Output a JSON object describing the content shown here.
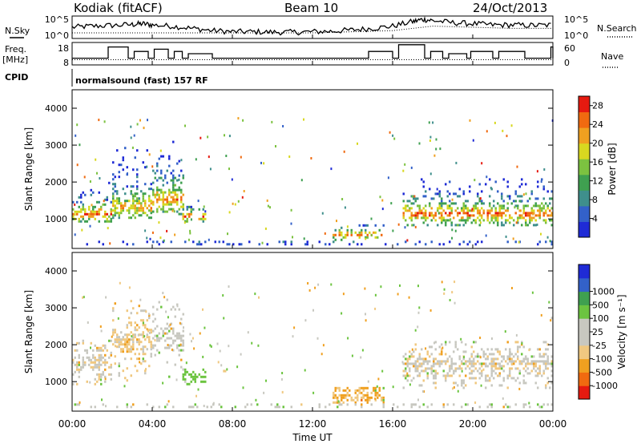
{
  "header": {
    "station": "Kodiak (fitACF)",
    "beam": "Beam 10",
    "date": "24/Oct/2013"
  },
  "panel_labels": {
    "nsky": "N.Sky",
    "nsearch": "N.Search",
    "freq": "Freq.",
    "freq_unit": "[MHz]",
    "nave": "Nave",
    "cpid": "CPID",
    "cpid_value": "normalsound (fast) 157 RF"
  },
  "colors": {
    "power_scale": [
      "#1f2bd6",
      "#3361c9",
      "#3f8f8c",
      "#3fa050",
      "#7cc240",
      "#d8d820",
      "#f0a020",
      "#f06a10",
      "#e61a10"
    ],
    "velocity_scale": [
      "#e61a10",
      "#f06a10",
      "#f0a020",
      "#f0c880",
      "#c8c8c0",
      "#c8c8c0",
      "#6cc440",
      "#3fa050",
      "#3361c9",
      "#1f2bd6"
    ],
    "grid": "#cccccc"
  },
  "chart_data": [
    {
      "type": "line",
      "name": "noise",
      "ylabel": "N.Sky",
      "yticks_left": [
        "10^5",
        "10^0"
      ],
      "yticks_right": [
        "10^5",
        "10^0"
      ],
      "xlim": [
        0,
        24
      ],
      "series": [
        {
          "name": "N.Sky",
          "style": "solid",
          "x": [
            0,
            1,
            2,
            3,
            3.5,
            4,
            5,
            6,
            7,
            8,
            9,
            10,
            11,
            12,
            13,
            14,
            15,
            16,
            17,
            17.5,
            18,
            19,
            20,
            21,
            22,
            23,
            24
          ],
          "y": [
            0.5,
            0.55,
            0.58,
            0.62,
            0.66,
            0.6,
            0.55,
            0.45,
            0.35,
            0.3,
            0.3,
            0.28,
            0.28,
            0.3,
            0.32,
            0.38,
            0.45,
            0.55,
            0.75,
            0.85,
            0.8,
            0.7,
            0.66,
            0.6,
            0.6,
            0.58,
            0.6
          ]
        },
        {
          "name": "N.Search",
          "style": "dotted",
          "x": [
            0,
            2,
            4,
            6,
            8,
            10,
            12,
            14,
            16,
            17,
            18,
            20,
            22,
            24
          ],
          "y": [
            0.25,
            0.25,
            0.25,
            0.25,
            0.25,
            0.25,
            0.25,
            0.3,
            0.35,
            0.45,
            0.55,
            0.5,
            0.45,
            0.45
          ]
        }
      ]
    },
    {
      "type": "line",
      "name": "frequency",
      "ylabel": "Freq. [MHz]",
      "ylabel_right": "Nave",
      "yticks_left": [
        "18",
        "8"
      ],
      "yticks_right": [
        "60",
        "0"
      ],
      "ylim": [
        8,
        18
      ],
      "ylim_right": [
        0,
        60
      ],
      "xlim": [
        0,
        24
      ],
      "series": [
        {
          "name": "Freq",
          "style": "step",
          "x": [
            0,
            1.5,
            1.8,
            2.8,
            3.1,
            3.8,
            4.1,
            4.8,
            5.1,
            5.5,
            5.8,
            7,
            8,
            9,
            10,
            11,
            12,
            13,
            14,
            14.5,
            14.8,
            16,
            16.3,
            17.6,
            17.9,
            18.5,
            18.8,
            19.7,
            19.9,
            21,
            21.3,
            22.6,
            22.9,
            23.6,
            23.9,
            24
          ],
          "y": [
            11,
            11,
            16,
            11,
            14,
            11,
            15,
            11,
            14,
            11,
            13,
            11,
            11,
            11,
            11,
            11,
            11,
            11,
            11,
            11,
            14,
            11,
            17,
            11,
            14,
            11,
            13,
            11,
            14,
            11,
            14,
            11,
            11,
            11,
            16,
            11
          ]
        },
        {
          "name": "Nave",
          "style": "dotted",
          "axis": "right",
          "x": [
            0,
            24
          ],
          "y": [
            14,
            14
          ]
        }
      ]
    },
    {
      "type": "heatmap",
      "name": "power",
      "ylabel": "Slant Range [km]",
      "yticks": [
        1000,
        2000,
        3000,
        4000
      ],
      "ylim": [
        200,
        4500
      ],
      "xlim": [
        0,
        24
      ],
      "colorbar_label": "Power [dB]",
      "colorbar_ticks": [
        4,
        8,
        12,
        16,
        20,
        24,
        28
      ],
      "colorbar_range": [
        0,
        30
      ],
      "regions": [
        {
          "t": [
            0.0,
            2.0
          ],
          "r": [
            900,
            2100
          ],
          "core": 1100,
          "spread": 250,
          "peak": 26
        },
        {
          "t": [
            2.0,
            4.0
          ],
          "r": [
            1000,
            3200
          ],
          "core": 1300,
          "spread": 400,
          "peak": 22
        },
        {
          "t": [
            4.0,
            5.5
          ],
          "r": [
            1100,
            3300
          ],
          "core": 1500,
          "spread": 450,
          "peak": 24
        },
        {
          "t": [
            5.5,
            6.6
          ],
          "r": [
            900,
            1300
          ],
          "core": 1050,
          "spread": 150,
          "peak": 28
        },
        {
          "t": [
            13.0,
            15.5
          ],
          "r": [
            400,
            800
          ],
          "core": 550,
          "spread": 120,
          "peak": 26
        },
        {
          "t": [
            16.5,
            24.0
          ],
          "r": [
            800,
            2100
          ],
          "core": 1100,
          "spread": 300,
          "peak": 26
        },
        {
          "t": [
            0.0,
            24.0
          ],
          "r": [
            280,
            360
          ],
          "core": 320,
          "spread": 40,
          "peak": 6,
          "density": 0.25
        }
      ]
    },
    {
      "type": "heatmap",
      "name": "velocity",
      "ylabel": "Slant Range [km]",
      "yticks": [
        1000,
        2000,
        3000,
        4000
      ],
      "ylim": [
        200,
        4500
      ],
      "xlim": [
        0,
        24
      ],
      "xticks": [
        "00:00",
        "04:00",
        "08:00",
        "12:00",
        "16:00",
        "20:00",
        "00:00"
      ],
      "xlabel": "Time UT",
      "colorbar_label": "Velocity [m s⁻¹]",
      "colorbar_ticks": [
        -1000,
        -500,
        -100,
        -25,
        25,
        100,
        500,
        1000
      ],
      "regions": [
        {
          "t": [
            0.0,
            2.0
          ],
          "r": [
            900,
            2100
          ],
          "vel": 0,
          "peak": 0
        },
        {
          "t": [
            2.0,
            4.0
          ],
          "r": [
            1000,
            3200
          ],
          "vel": -50,
          "peak": 0
        },
        {
          "t": [
            4.0,
            5.5
          ],
          "r": [
            1100,
            3300
          ],
          "vel": 50,
          "peak": 0
        },
        {
          "t": [
            5.5,
            6.6
          ],
          "r": [
            900,
            1300
          ],
          "vel": 150,
          "peak": 0
        },
        {
          "t": [
            13.0,
            15.5
          ],
          "r": [
            400,
            800
          ],
          "vel": -100,
          "peak": 0
        },
        {
          "t": [
            16.5,
            24.0
          ],
          "r": [
            800,
            2100
          ],
          "vel": 0,
          "peak": 0
        },
        {
          "t": [
            0.0,
            24.0
          ],
          "r": [
            280,
            360
          ],
          "vel": 60,
          "peak": 0,
          "density": 0.2
        }
      ]
    }
  ]
}
